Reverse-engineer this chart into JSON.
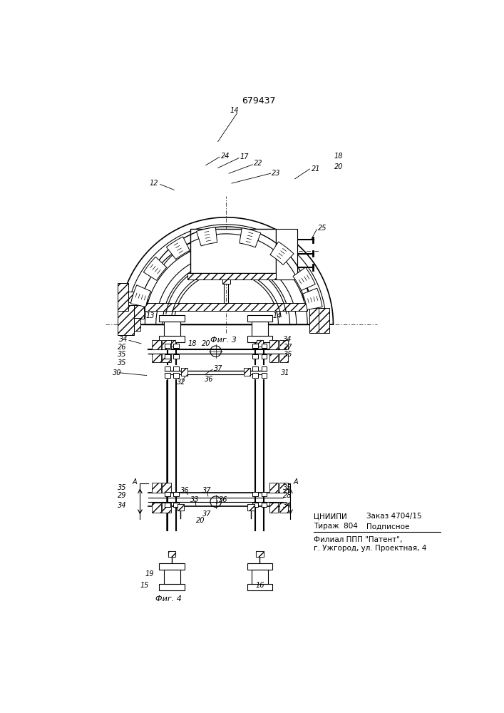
{
  "patent_number": "679437",
  "bg_color": "#ffffff",
  "line_color": "#000000",
  "bottom_text": {
    "line1a": "ЦНИИПИ",
    "line1b": "Заказ 4704/15",
    "line2a": "Тираж  804",
    "line2b": "Подписное",
    "line3": "Филиал ППП \"Патент\",",
    "line4": "г. Ужгород, ул. Проектная, 4"
  }
}
